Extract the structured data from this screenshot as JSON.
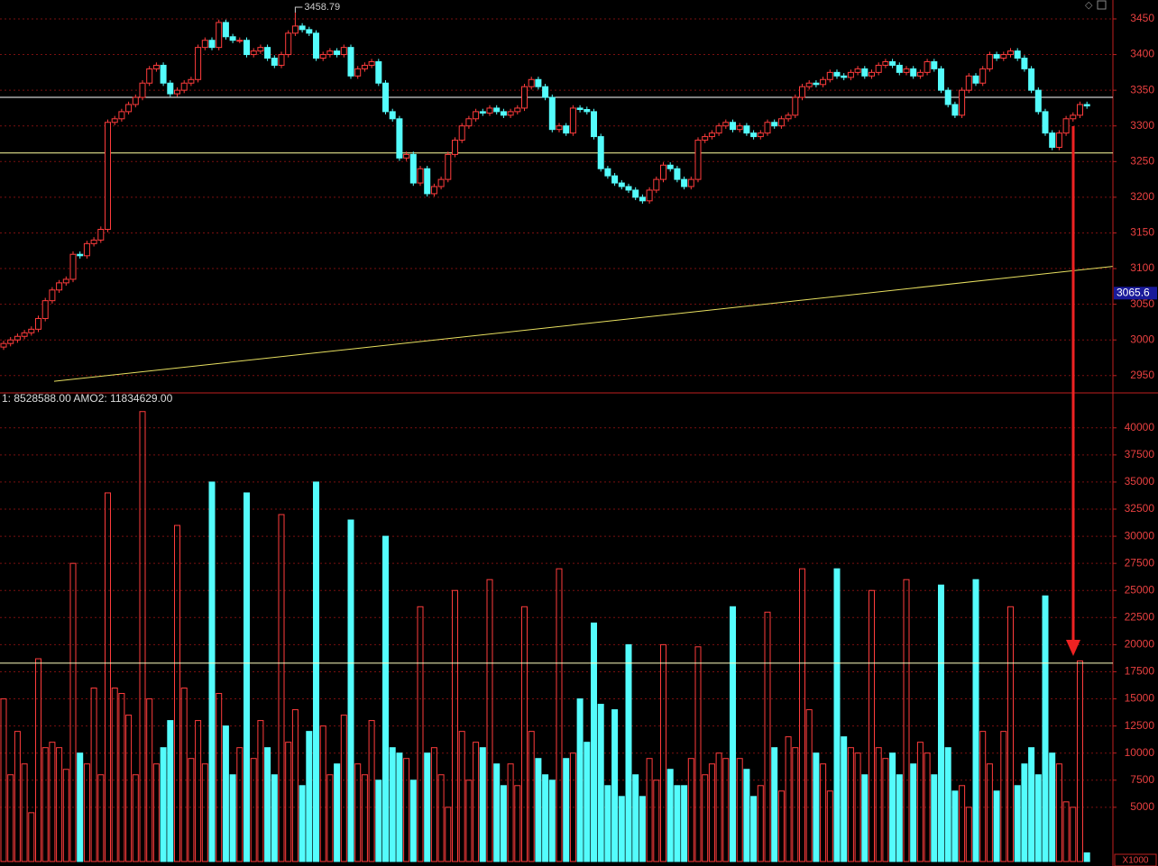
{
  "chart_data": [
    {
      "type": "candlestick",
      "up_color": "#ff3c3c",
      "down_color": "#54fcfc",
      "ylim": [
        2927,
        3476.5
      ],
      "yticks": [
        2950,
        3000,
        3050,
        3100,
        3150,
        3200,
        3250,
        3300,
        3350,
        3400,
        3450
      ],
      "grid": true,
      "hlines": [
        3340,
        3262
      ],
      "hline_colors": [
        "#ffffff",
        "#ffffa0"
      ],
      "trendline": {
        "x": [
          7.27,
          159.7
        ],
        "y": [
          2942,
          3103
        ],
        "color": "#e8e060"
      },
      "high_label": "3458.79",
      "high_index": 42,
      "price_tag": 3065.6,
      "open": [
        2990,
        2995,
        3000,
        3005,
        3010,
        3015,
        3030,
        3055,
        3070,
        3080,
        3085,
        3120,
        3118,
        3135,
        3140,
        3155,
        3305,
        3310,
        3320,
        3330,
        3340,
        3360,
        3380,
        3385,
        3360,
        3345,
        3350,
        3360,
        3365,
        3410,
        3420,
        3410,
        3445,
        3425,
        3420,
        3420,
        3400,
        3405,
        3410,
        3395,
        3385,
        3400,
        3430,
        3440,
        3435,
        3430,
        3395,
        3400,
        3405,
        3400,
        3410,
        3370,
        3380,
        3385,
        3390,
        3360,
        3320,
        3310,
        3255,
        3260,
        3220,
        3240,
        3205,
        3215,
        3225,
        3260,
        3280,
        3300,
        3310,
        3320,
        3318,
        3325,
        3320,
        3315,
        3320,
        3325,
        3355,
        3365,
        3355,
        3340,
        3295,
        3300,
        3290,
        3325,
        3323,
        3320,
        3285,
        3240,
        3230,
        3220,
        3215,
        3210,
        3200,
        3195,
        3210,
        3225,
        3245,
        3240,
        3225,
        3215,
        3225,
        3280,
        3285,
        3290,
        3300,
        3305,
        3295,
        3300,
        3290,
        3285,
        3290,
        3305,
        3300,
        3310,
        3315,
        3340,
        3355,
        3360,
        3358,
        3365,
        3375,
        3370,
        3368,
        3375,
        3380,
        3370,
        3375,
        3385,
        3390,
        3385,
        3375,
        3380,
        3370,
        3375,
        3390,
        3380,
        3350,
        3330,
        3315,
        3350,
        3370,
        3360,
        3380,
        3400,
        3395,
        3400,
        3405,
        3395,
        3380,
        3350,
        3320,
        3290,
        3270,
        3290,
        3310,
        3315,
        3330
      ],
      "high": [
        2999,
        3004,
        3009,
        3014,
        3019,
        3034,
        3059,
        3074,
        3084,
        3089,
        3124,
        3124,
        3139,
        3144,
        3159,
        3309,
        3314,
        3324,
        3334,
        3344,
        3364,
        3384,
        3389,
        3389,
        3364,
        3354,
        3364,
        3369,
        3414,
        3424,
        3424,
        3449,
        3449,
        3429,
        3424,
        3424,
        3409,
        3414,
        3414,
        3399,
        3404,
        3434,
        3458.79,
        3444,
        3439,
        3434,
        3404,
        3409,
        3409,
        3414,
        3414,
        3384,
        3389,
        3394,
        3394,
        3364,
        3324,
        3314,
        3264,
        3264,
        3244,
        3244,
        3219,
        3229,
        3264,
        3284,
        3304,
        3314,
        3324,
        3324,
        3329,
        3329,
        3324,
        3324,
        3329,
        3359,
        3369,
        3369,
        3359,
        3344,
        3304,
        3304,
        3329,
        3329,
        3327,
        3324,
        3289,
        3244,
        3234,
        3224,
        3219,
        3214,
        3204,
        3214,
        3229,
        3249,
        3249,
        3244,
        3229,
        3229,
        3284,
        3289,
        3294,
        3304,
        3309,
        3309,
        3304,
        3304,
        3294,
        3294,
        3309,
        3309,
        3314,
        3319,
        3344,
        3359,
        3364,
        3364,
        3369,
        3379,
        3379,
        3374,
        3379,
        3384,
        3384,
        3379,
        3389,
        3394,
        3394,
        3389,
        3384,
        3384,
        3379,
        3394,
        3394,
        3384,
        3354,
        3334,
        3354,
        3374,
        3374,
        3384,
        3404,
        3404,
        3404,
        3409,
        3409,
        3399,
        3384,
        3354,
        3324,
        3294,
        3294,
        3314,
        3319,
        3334,
        3334
      ],
      "low": [
        2986,
        2991,
        2996,
        3001,
        3006,
        3011,
        3026,
        3051,
        3066,
        3076,
        3081,
        3114,
        3114,
        3131,
        3136,
        3151,
        3301,
        3306,
        3316,
        3326,
        3336,
        3356,
        3376,
        3356,
        3341,
        3341,
        3346,
        3356,
        3361,
        3406,
        3406,
        3406,
        3421,
        3416,
        3416,
        3396,
        3396,
        3401,
        3391,
        3381,
        3381,
        3396,
        3426,
        3431,
        3426,
        3391,
        3391,
        3396,
        3396,
        3396,
        3366,
        3366,
        3376,
        3381,
        3356,
        3316,
        3306,
        3251,
        3251,
        3216,
        3216,
        3201,
        3201,
        3211,
        3221,
        3256,
        3276,
        3296,
        3306,
        3314,
        3314,
        3316,
        3311,
        3311,
        3316,
        3321,
        3351,
        3351,
        3336,
        3291,
        3291,
        3286,
        3286,
        3319,
        3316,
        3281,
        3236,
        3226,
        3216,
        3211,
        3206,
        3196,
        3191,
        3191,
        3206,
        3221,
        3236,
        3221,
        3211,
        3211,
        3221,
        3276,
        3281,
        3286,
        3296,
        3291,
        3291,
        3286,
        3281,
        3281,
        3286,
        3296,
        3296,
        3306,
        3311,
        3336,
        3351,
        3354,
        3354,
        3361,
        3366,
        3364,
        3364,
        3371,
        3366,
        3366,
        3371,
        3381,
        3381,
        3371,
        3371,
        3366,
        3366,
        3371,
        3376,
        3346,
        3326,
        3311,
        3311,
        3346,
        3356,
        3356,
        3376,
        3391,
        3391,
        3396,
        3391,
        3376,
        3346,
        3316,
        3286,
        3266,
        3266,
        3286,
        3306,
        3311,
        3324
      ],
      "close": [
        2995,
        3000,
        3005,
        3010,
        3015,
        3030,
        3055,
        3070,
        3080,
        3085,
        3120,
        3118,
        3135,
        3140,
        3155,
        3305,
        3310,
        3320,
        3330,
        3340,
        3360,
        3380,
        3385,
        3360,
        3345,
        3350,
        3360,
        3365,
        3410,
        3420,
        3410,
        3445,
        3425,
        3420,
        3420,
        3400,
        3405,
        3410,
        3395,
        3385,
        3400,
        3430,
        3440,
        3435,
        3430,
        3395,
        3400,
        3405,
        3400,
        3410,
        3370,
        3380,
        3385,
        3390,
        3360,
        3320,
        3310,
        3255,
        3260,
        3220,
        3240,
        3205,
        3215,
        3225,
        3260,
        3280,
        3300,
        3310,
        3320,
        3318,
        3325,
        3320,
        3315,
        3320,
        3325,
        3355,
        3365,
        3355,
        3340,
        3295,
        3300,
        3290,
        3325,
        3323,
        3320,
        3285,
        3240,
        3230,
        3220,
        3215,
        3210,
        3200,
        3195,
        3210,
        3225,
        3245,
        3240,
        3225,
        3215,
        3225,
        3280,
        3285,
        3290,
        3300,
        3305,
        3295,
        3300,
        3290,
        3285,
        3290,
        3305,
        3300,
        3310,
        3315,
        3340,
        3355,
        3360,
        3358,
        3365,
        3375,
        3370,
        3368,
        3375,
        3380,
        3370,
        3375,
        3385,
        3390,
        3385,
        3375,
        3380,
        3370,
        3375,
        3390,
        3380,
        3350,
        3330,
        3315,
        3350,
        3370,
        3360,
        3380,
        3400,
        3395,
        3400,
        3405,
        3395,
        3380,
        3350,
        3320,
        3290,
        3270,
        3290,
        3310,
        3315,
        3330,
        3328
      ]
    },
    {
      "type": "bar",
      "header": "1: 8528588.00 AMO2: 11834629.00",
      "unit_label": "X1000",
      "ylim": [
        0,
        43140
      ],
      "yticks": [
        5000,
        7500,
        10000,
        12500,
        15000,
        17500,
        20000,
        22500,
        25000,
        27500,
        30000,
        32500,
        35000,
        37500,
        40000
      ],
      "grid": true,
      "hline": 18300,
      "values": [
        15000,
        8000,
        12000,
        9000,
        4500,
        18700,
        10500,
        11000,
        10500,
        8500,
        27500,
        10000,
        9000,
        16000,
        8000,
        34000,
        16000,
        15500,
        13500,
        8000,
        41500,
        15000,
        9000,
        10500,
        13000,
        31000,
        16000,
        9500,
        13000,
        9000,
        35000,
        15500,
        12500,
        8000,
        10500,
        34000,
        9500,
        13000,
        10500,
        8000,
        32000,
        11000,
        14000,
        7000,
        12000,
        35000,
        12500,
        8000,
        9000,
        13500,
        31500,
        9000,
        8000,
        13000,
        7500,
        30000,
        10500,
        10000,
        9500,
        7500,
        23500,
        10000,
        10500,
        8000,
        5000,
        25000,
        12000,
        7500,
        11000,
        10500,
        26000,
        9000,
        7000,
        9000,
        7000,
        23500,
        12000,
        9500,
        8000,
        7500,
        27000,
        9500,
        10000,
        15000,
        11000,
        22000,
        14500,
        7000,
        14000,
        6000,
        20000,
        8000,
        6000,
        9500,
        7500,
        20000,
        8500,
        7000,
        7000,
        9500,
        19800,
        8000,
        9000,
        10000,
        9500,
        23500,
        9500,
        8500,
        6000,
        7000,
        23000,
        10500,
        6500,
        11500,
        10500,
        27000,
        14000,
        10000,
        9000,
        6500,
        27000,
        11500,
        10500,
        10000,
        8000,
        25000,
        10500,
        9500,
        10000,
        8000,
        26000,
        9000,
        11000,
        10000,
        8000,
        25500,
        10500,
        6500,
        7000,
        5000,
        26000,
        12000,
        9000,
        6500,
        12000,
        23500,
        7000,
        9000,
        10500,
        8000,
        24500,
        10000,
        9000,
        5500,
        5000,
        18500,
        800
      ]
    }
  ]
}
